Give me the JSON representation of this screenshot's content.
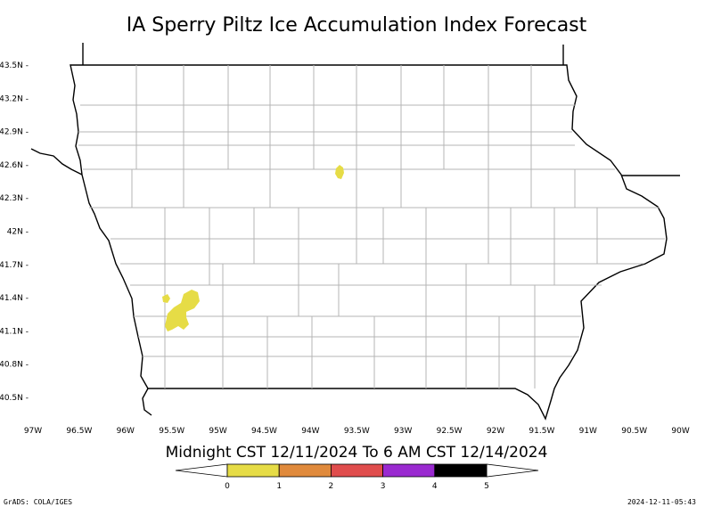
{
  "title": "IA Sperry Piltz Ice Accumulation Index Forecast",
  "subtitle": "Midnight CST 12/11/2024 To 6 AM CST 12/14/2024",
  "lat_ticks": [
    "43.5N",
    "43.2N",
    "42.9N",
    "42.6N",
    "42.3N",
    "42N",
    "41.7N",
    "41.4N",
    "41.1N",
    "40.8N",
    "40.5N"
  ],
  "lon_ticks": [
    "97W",
    "96.5W",
    "96W",
    "95.5W",
    "95W",
    "94.5W",
    "94W",
    "93.5W",
    "93W",
    "92.5W",
    "92W",
    "91.5W",
    "91W",
    "90.5W",
    "90W"
  ],
  "legend": {
    "labels": [
      "0",
      "1",
      "2",
      "3",
      "4",
      "5"
    ],
    "colors": [
      "#e6dc46",
      "#e08a3c",
      "#e04d4d",
      "#9a2ad0",
      "#000000"
    ]
  },
  "ice_areas": [
    {
      "region": "north-central Iowa",
      "index_range": "0-1",
      "color": "#e6dc46"
    },
    {
      "region": "southwest Iowa",
      "index_range": "0-1",
      "color": "#e6dc46"
    }
  ],
  "footer_left": "GrADS: COLA/IGES",
  "footer_right": "2024-12-11-05:43"
}
